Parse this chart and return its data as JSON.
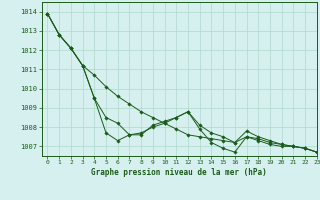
{
  "title": "Graphe pression niveau de la mer (hPa)",
  "bg_color": "#d6f0f0",
  "grid_color": "#b0d8cc",
  "line_color": "#1a5c1a",
  "xlim": [
    -0.5,
    23
  ],
  "ylim": [
    1006.5,
    1014.5
  ],
  "yticks": [
    1007,
    1008,
    1009,
    1010,
    1011,
    1012,
    1013,
    1014
  ],
  "xticks": [
    0,
    1,
    2,
    3,
    4,
    5,
    6,
    7,
    8,
    9,
    10,
    11,
    12,
    13,
    14,
    15,
    16,
    17,
    18,
    19,
    20,
    21,
    22,
    23
  ],
  "series1": [
    1013.9,
    1012.8,
    1012.1,
    1011.2,
    1009.5,
    1008.5,
    1008.2,
    1007.6,
    1007.6,
    1008.1,
    1008.3,
    1008.5,
    1008.8,
    1008.1,
    1007.7,
    1007.5,
    1007.2,
    1007.8,
    1007.5,
    1007.3,
    1007.1,
    1007.0,
    1006.9,
    1006.7
  ],
  "series2": [
    1013.9,
    1012.8,
    1012.1,
    1011.2,
    1010.7,
    1010.1,
    1009.6,
    1009.2,
    1008.8,
    1008.5,
    1008.2,
    1007.9,
    1007.6,
    1007.5,
    1007.4,
    1007.3,
    1007.2,
    1007.5,
    1007.4,
    1007.2,
    1007.1,
    1007.0,
    1006.9,
    1006.7
  ],
  "series3": [
    1013.9,
    1012.8,
    1012.1,
    1011.2,
    1009.5,
    1007.7,
    1007.3,
    1007.6,
    1007.7,
    1008.0,
    1008.2,
    1008.5,
    1008.8,
    1007.9,
    1007.2,
    1006.9,
    1006.7,
    1007.5,
    1007.3,
    1007.1,
    1007.0,
    1007.0,
    1006.9,
    1006.7
  ]
}
